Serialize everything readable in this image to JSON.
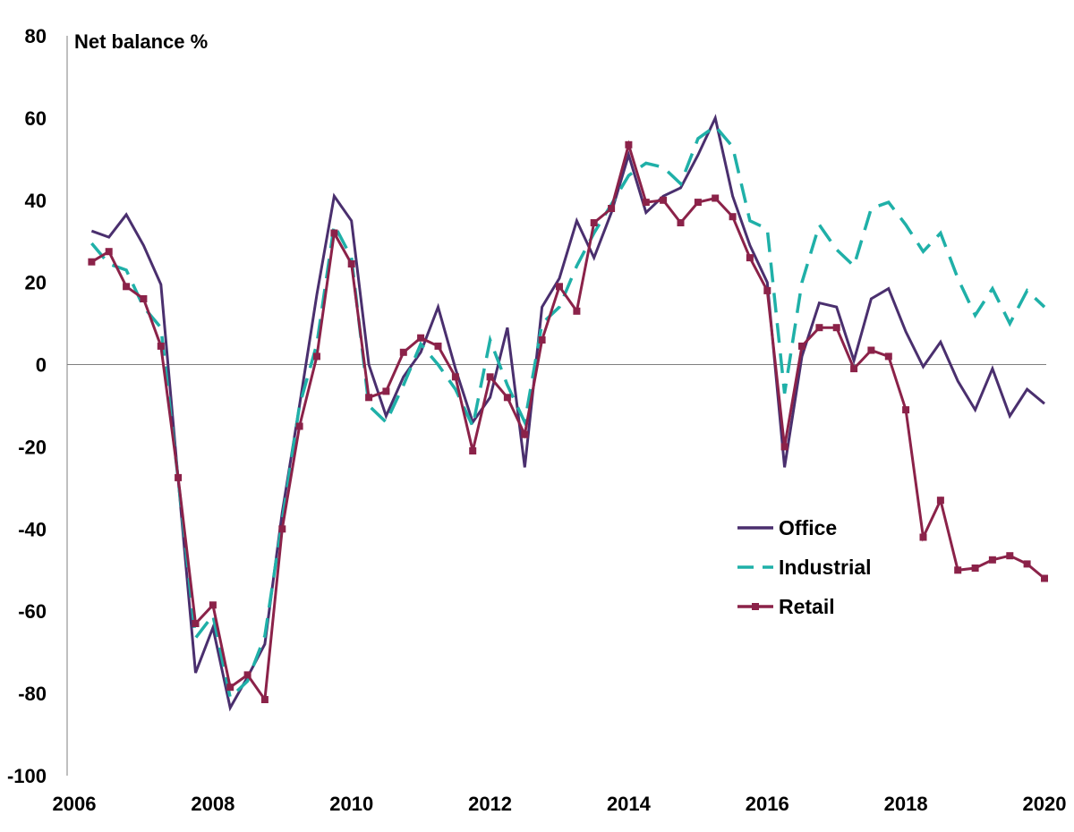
{
  "chart_data": {
    "type": "line",
    "ylabel": "Net balance %",
    "ylim": [
      -100,
      80
    ],
    "xlim": [
      2006,
      2020
    ],
    "yticks": [
      80,
      60,
      40,
      20,
      0,
      -20,
      -40,
      -60,
      -80,
      -100
    ],
    "xticks": [
      2006,
      2008,
      2010,
      2012,
      2014,
      2016,
      2018,
      2020
    ],
    "legend_position": "right",
    "series": [
      {
        "name": "Office",
        "color": "#4A2F6E",
        "style": "solid",
        "points": [
          [
            2006.25,
            32.5
          ],
          [
            2006.5,
            31
          ],
          [
            2006.75,
            36.5
          ],
          [
            2007,
            29
          ],
          [
            2007.25,
            19.5
          ],
          [
            2007.5,
            -28
          ],
          [
            2007.75,
            -75
          ],
          [
            2008,
            -64
          ],
          [
            2008.25,
            -83.5
          ],
          [
            2008.5,
            -76
          ],
          [
            2008.75,
            -68
          ],
          [
            2009,
            -36
          ],
          [
            2009.25,
            -10
          ],
          [
            2009.5,
            17
          ],
          [
            2009.75,
            41
          ],
          [
            2010,
            35
          ],
          [
            2010.25,
            0
          ],
          [
            2010.5,
            -12.5
          ],
          [
            2010.75,
            -3
          ],
          [
            2011,
            3
          ],
          [
            2011.25,
            14
          ],
          [
            2011.5,
            -1
          ],
          [
            2011.75,
            -14
          ],
          [
            2012,
            -8
          ],
          [
            2012.25,
            9
          ],
          [
            2012.5,
            -25
          ],
          [
            2012.75,
            14
          ],
          [
            2013,
            21
          ],
          [
            2013.25,
            35
          ],
          [
            2013.5,
            26
          ],
          [
            2013.75,
            37
          ],
          [
            2014,
            51
          ],
          [
            2014.25,
            37
          ],
          [
            2014.5,
            41
          ],
          [
            2014.75,
            43
          ],
          [
            2015,
            51
          ],
          [
            2015.25,
            60
          ],
          [
            2015.5,
            41
          ],
          [
            2015.75,
            29
          ],
          [
            2016,
            20
          ],
          [
            2016.25,
            -25
          ],
          [
            2016.5,
            2
          ],
          [
            2016.75,
            15
          ],
          [
            2017,
            14
          ],
          [
            2017.25,
            1
          ],
          [
            2017.5,
            16
          ],
          [
            2017.75,
            18.5
          ],
          [
            2018,
            8
          ],
          [
            2018.25,
            -0.5
          ],
          [
            2018.5,
            5.5
          ],
          [
            2018.75,
            -4
          ],
          [
            2019,
            -11
          ],
          [
            2019.25,
            -1
          ],
          [
            2019.5,
            -12.5
          ],
          [
            2019.75,
            -6
          ],
          [
            2020,
            -9.5
          ]
        ]
      },
      {
        "name": "Industrial",
        "color": "#1FB0A8",
        "style": "dashed",
        "points": [
          [
            2006.25,
            29.5
          ],
          [
            2006.5,
            24.5
          ],
          [
            2006.75,
            23
          ],
          [
            2007,
            14
          ],
          [
            2007.25,
            9
          ],
          [
            2007.5,
            -28
          ],
          [
            2007.75,
            -66.5
          ],
          [
            2008,
            -61
          ],
          [
            2008.25,
            -81
          ],
          [
            2008.5,
            -77
          ],
          [
            2008.75,
            -66
          ],
          [
            2009,
            -38
          ],
          [
            2009.25,
            -10
          ],
          [
            2009.5,
            5
          ],
          [
            2009.75,
            34
          ],
          [
            2010,
            26
          ],
          [
            2010.25,
            -10
          ],
          [
            2010.5,
            -14
          ],
          [
            2010.75,
            -5
          ],
          [
            2011,
            5
          ],
          [
            2011.25,
            0
          ],
          [
            2011.5,
            -6
          ],
          [
            2011.75,
            -15
          ],
          [
            2012,
            6
          ],
          [
            2012.25,
            -5
          ],
          [
            2012.5,
            -14
          ],
          [
            2012.75,
            10
          ],
          [
            2013,
            14
          ],
          [
            2013.25,
            24
          ],
          [
            2013.5,
            32
          ],
          [
            2013.75,
            39
          ],
          [
            2014,
            46
          ],
          [
            2014.25,
            49
          ],
          [
            2014.5,
            48
          ],
          [
            2014.75,
            44
          ],
          [
            2015,
            55
          ],
          [
            2015.25,
            58
          ],
          [
            2015.5,
            53
          ],
          [
            2015.75,
            35
          ],
          [
            2016,
            33
          ],
          [
            2016.25,
            -7
          ],
          [
            2016.5,
            20
          ],
          [
            2016.75,
            34
          ],
          [
            2017,
            28
          ],
          [
            2017.25,
            24
          ],
          [
            2017.5,
            38
          ],
          [
            2017.75,
            39.5
          ],
          [
            2018,
            34
          ],
          [
            2018.25,
            27.5
          ],
          [
            2018.5,
            32
          ],
          [
            2018.75,
            21
          ],
          [
            2019,
            12
          ],
          [
            2019.25,
            18.5
          ],
          [
            2019.5,
            10
          ],
          [
            2019.75,
            18
          ],
          [
            2020,
            14
          ]
        ]
      },
      {
        "name": "Retail",
        "color": "#8B2249",
        "style": "solid-markers",
        "points": [
          [
            2006.25,
            25
          ],
          [
            2006.5,
            27.5
          ],
          [
            2006.75,
            19
          ],
          [
            2007,
            16
          ],
          [
            2007.25,
            4.5
          ],
          [
            2007.5,
            -27.5
          ],
          [
            2007.75,
            -63
          ],
          [
            2008,
            -58.5
          ],
          [
            2008.25,
            -78.5
          ],
          [
            2008.5,
            -75.5
          ],
          [
            2008.75,
            -81.5
          ],
          [
            2009,
            -40
          ],
          [
            2009.25,
            -15
          ],
          [
            2009.5,
            2
          ],
          [
            2009.75,
            32
          ],
          [
            2010,
            24.5
          ],
          [
            2010.25,
            -8
          ],
          [
            2010.5,
            -6.5
          ],
          [
            2010.75,
            3
          ],
          [
            2011,
            6.5
          ],
          [
            2011.25,
            4.5
          ],
          [
            2011.5,
            -3
          ],
          [
            2011.75,
            -21
          ],
          [
            2012,
            -3
          ],
          [
            2012.25,
            -8
          ],
          [
            2012.5,
            -17
          ],
          [
            2012.75,
            6
          ],
          [
            2013,
            19
          ],
          [
            2013.25,
            13
          ],
          [
            2013.5,
            34.5
          ],
          [
            2013.75,
            38
          ],
          [
            2014,
            53.5
          ],
          [
            2014.25,
            39.5
          ],
          [
            2014.5,
            40
          ],
          [
            2014.75,
            34.5
          ],
          [
            2015,
            39.5
          ],
          [
            2015.25,
            40.5
          ],
          [
            2015.5,
            36
          ],
          [
            2015.75,
            26
          ],
          [
            2016,
            18
          ],
          [
            2016.25,
            -20
          ],
          [
            2016.5,
            4.5
          ],
          [
            2016.75,
            9
          ],
          [
            2017,
            9
          ],
          [
            2017.25,
            -1
          ],
          [
            2017.5,
            3.5
          ],
          [
            2017.75,
            2
          ],
          [
            2018,
            -11
          ],
          [
            2018.25,
            -42
          ],
          [
            2018.5,
            -33
          ],
          [
            2018.75,
            -50
          ],
          [
            2019,
            -49.5
          ],
          [
            2019.25,
            -47.5
          ],
          [
            2019.5,
            -46.5
          ],
          [
            2019.75,
            -48.5
          ],
          [
            2020,
            -52
          ]
        ]
      }
    ]
  }
}
